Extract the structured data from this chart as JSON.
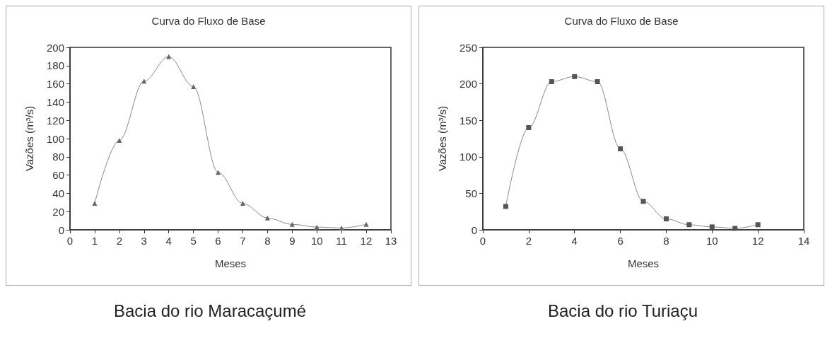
{
  "chart_data": [
    {
      "type": "line",
      "title": "Curva do Fluxo de Base",
      "xlabel": "Meses",
      "ylabel": "Vazões (m³/s)",
      "annotations": [
        "Bacia do rio Maracaçumé"
      ],
      "x": [
        1,
        2,
        3,
        4,
        5,
        6,
        7,
        8,
        9,
        10,
        11,
        12
      ],
      "series": [
        {
          "color": "#666666",
          "values": [
            29,
            98,
            163,
            190,
            157,
            63,
            29,
            13,
            6,
            3,
            2,
            6
          ]
        }
      ],
      "xlim": [
        0,
        13
      ],
      "xticks": [
        0,
        1,
        2,
        3,
        4,
        5,
        6,
        7,
        8,
        9,
        10,
        11,
        12,
        13
      ],
      "ylim": [
        0,
        200
      ],
      "yticks": [
        0,
        20,
        40,
        60,
        80,
        100,
        120,
        140,
        160,
        180,
        200
      ],
      "grid": false,
      "marker": "triangle",
      "line_style": "solid"
    },
    {
      "type": "line",
      "title": "Curva do Fluxo de Base",
      "xlabel": "Meses",
      "ylabel": "Vazões (m³/s)",
      "annotations": [
        "Bacia do rio Turiaçu"
      ],
      "x": [
        1,
        2,
        3,
        4,
        5,
        6,
        7,
        8,
        9,
        10,
        11,
        12
      ],
      "series": [
        {
          "color": "#555555",
          "values": [
            32,
            140,
            203,
            210,
            203,
            111,
            39,
            15,
            7,
            4,
            2,
            7
          ]
        }
      ],
      "xlim": [
        0,
        14
      ],
      "xticks": [
        0,
        2,
        4,
        6,
        8,
        10,
        12,
        14
      ],
      "ylim": [
        0,
        250
      ],
      "yticks": [
        0,
        50,
        100,
        150,
        200,
        250
      ],
      "grid": false,
      "marker": "square",
      "line_style": "solid"
    }
  ]
}
